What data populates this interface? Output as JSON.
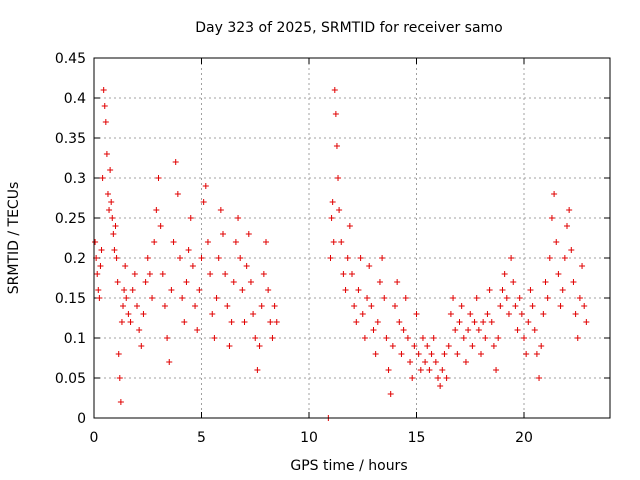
{
  "chart_data": {
    "type": "scatter",
    "title": "Day 323 of 2025, SRMTID for receiver samo",
    "xlabel": "GPS time / hours",
    "ylabel": "SRMTID / TECUs",
    "xlim": [
      0,
      24
    ],
    "ylim": [
      0,
      0.45
    ],
    "x_ticks": [
      0,
      5,
      10,
      15,
      20
    ],
    "x_tick_labels": [
      "0",
      "5",
      "10",
      "15",
      "20"
    ],
    "y_ticks": [
      0,
      0.05,
      0.1,
      0.15,
      0.2,
      0.25,
      0.3,
      0.35,
      0.4,
      0.45
    ],
    "y_tick_labels": [
      "0",
      "0.05",
      "0.1",
      "0.15",
      "0.2",
      "0.25",
      "0.3",
      "0.35",
      "0.4",
      "0.45"
    ],
    "grid": true,
    "marker": "plus",
    "color": "#e00000",
    "series": [
      {
        "name": "SRMTID",
        "points": [
          [
            0.05,
            0.22
          ],
          [
            0.1,
            0.2
          ],
          [
            0.15,
            0.18
          ],
          [
            0.2,
            0.16
          ],
          [
            0.25,
            0.15
          ],
          [
            0.3,
            0.19
          ],
          [
            0.35,
            0.21
          ],
          [
            0.4,
            0.3
          ],
          [
            0.45,
            0.41
          ],
          [
            0.5,
            0.39
          ],
          [
            0.55,
            0.37
          ],
          [
            0.6,
            0.33
          ],
          [
            0.65,
            0.28
          ],
          [
            0.7,
            0.26
          ],
          [
            0.75,
            0.31
          ],
          [
            0.8,
            0.27
          ],
          [
            0.85,
            0.25
          ],
          [
            0.9,
            0.23
          ],
          [
            0.95,
            0.21
          ],
          [
            1.0,
            0.24
          ],
          [
            1.05,
            0.2
          ],
          [
            1.1,
            0.17
          ],
          [
            1.15,
            0.08
          ],
          [
            1.2,
            0.05
          ],
          [
            1.25,
            0.02
          ],
          [
            1.3,
            0.12
          ],
          [
            1.35,
            0.14
          ],
          [
            1.4,
            0.16
          ],
          [
            1.45,
            0.19
          ],
          [
            1.5,
            0.15
          ],
          [
            1.6,
            0.13
          ],
          [
            1.7,
            0.12
          ],
          [
            1.8,
            0.16
          ],
          [
            1.9,
            0.18
          ],
          [
            2.0,
            0.14
          ],
          [
            2.1,
            0.11
          ],
          [
            2.2,
            0.09
          ],
          [
            2.3,
            0.13
          ],
          [
            2.4,
            0.17
          ],
          [
            2.5,
            0.2
          ],
          [
            2.6,
            0.18
          ],
          [
            2.7,
            0.15
          ],
          [
            2.8,
            0.22
          ],
          [
            2.9,
            0.26
          ],
          [
            3.0,
            0.3
          ],
          [
            3.1,
            0.24
          ],
          [
            3.2,
            0.18
          ],
          [
            3.3,
            0.14
          ],
          [
            3.4,
            0.1
          ],
          [
            3.5,
            0.07
          ],
          [
            3.6,
            0.16
          ],
          [
            3.7,
            0.22
          ],
          [
            3.8,
            0.32
          ],
          [
            3.9,
            0.28
          ],
          [
            4.0,
            0.2
          ],
          [
            4.1,
            0.15
          ],
          [
            4.2,
            0.12
          ],
          [
            4.3,
            0.17
          ],
          [
            4.4,
            0.21
          ],
          [
            4.5,
            0.25
          ],
          [
            4.6,
            0.19
          ],
          [
            4.7,
            0.14
          ],
          [
            4.8,
            0.11
          ],
          [
            4.9,
            0.16
          ],
          [
            5.0,
            0.2
          ],
          [
            5.1,
            0.27
          ],
          [
            5.2,
            0.29
          ],
          [
            5.3,
            0.22
          ],
          [
            5.4,
            0.18
          ],
          [
            5.5,
            0.13
          ],
          [
            5.6,
            0.1
          ],
          [
            5.7,
            0.15
          ],
          [
            5.8,
            0.2
          ],
          [
            5.9,
            0.26
          ],
          [
            6.0,
            0.23
          ],
          [
            6.1,
            0.18
          ],
          [
            6.2,
            0.14
          ],
          [
            6.3,
            0.09
          ],
          [
            6.4,
            0.12
          ],
          [
            6.5,
            0.17
          ],
          [
            6.6,
            0.22
          ],
          [
            6.7,
            0.25
          ],
          [
            6.8,
            0.2
          ],
          [
            6.9,
            0.16
          ],
          [
            7.0,
            0.12
          ],
          [
            7.1,
            0.19
          ],
          [
            7.2,
            0.23
          ],
          [
            7.3,
            0.17
          ],
          [
            7.4,
            0.13
          ],
          [
            7.5,
            0.1
          ],
          [
            7.6,
            0.06
          ],
          [
            7.7,
            0.09
          ],
          [
            7.8,
            0.14
          ],
          [
            7.9,
            0.18
          ],
          [
            8.0,
            0.22
          ],
          [
            8.1,
            0.16
          ],
          [
            8.2,
            0.12
          ],
          [
            8.3,
            0.1
          ],
          [
            8.4,
            0.14
          ],
          [
            8.5,
            0.12
          ],
          [
            10.9,
            0.0
          ],
          [
            11.0,
            0.2
          ],
          [
            11.05,
            0.25
          ],
          [
            11.1,
            0.27
          ],
          [
            11.15,
            0.22
          ],
          [
            11.2,
            0.41
          ],
          [
            11.25,
            0.38
          ],
          [
            11.3,
            0.34
          ],
          [
            11.35,
            0.3
          ],
          [
            11.4,
            0.26
          ],
          [
            11.5,
            0.22
          ],
          [
            11.6,
            0.18
          ],
          [
            11.7,
            0.16
          ],
          [
            11.8,
            0.2
          ],
          [
            11.9,
            0.24
          ],
          [
            12.0,
            0.18
          ],
          [
            12.1,
            0.14
          ],
          [
            12.2,
            0.12
          ],
          [
            12.3,
            0.16
          ],
          [
            12.4,
            0.2
          ],
          [
            12.5,
            0.13
          ],
          [
            12.6,
            0.1
          ],
          [
            12.7,
            0.15
          ],
          [
            12.8,
            0.19
          ],
          [
            12.9,
            0.14
          ],
          [
            13.0,
            0.11
          ],
          [
            13.1,
            0.08
          ],
          [
            13.2,
            0.12
          ],
          [
            13.3,
            0.17
          ],
          [
            13.4,
            0.2
          ],
          [
            13.5,
            0.15
          ],
          [
            13.6,
            0.1
          ],
          [
            13.7,
            0.06
          ],
          [
            13.8,
            0.03
          ],
          [
            13.9,
            0.09
          ],
          [
            14.0,
            0.14
          ],
          [
            14.1,
            0.17
          ],
          [
            14.2,
            0.12
          ],
          [
            14.3,
            0.08
          ],
          [
            14.4,
            0.11
          ],
          [
            14.5,
            0.15
          ],
          [
            14.6,
            0.1
          ],
          [
            14.7,
            0.07
          ],
          [
            14.8,
            0.05
          ],
          [
            14.9,
            0.09
          ],
          [
            15.0,
            0.13
          ],
          [
            15.1,
            0.08
          ],
          [
            15.2,
            0.06
          ],
          [
            15.3,
            0.1
          ],
          [
            15.4,
            0.07
          ],
          [
            15.5,
            0.09
          ],
          [
            15.6,
            0.06
          ],
          [
            15.7,
            0.08
          ],
          [
            15.8,
            0.1
          ],
          [
            15.9,
            0.07
          ],
          [
            16.0,
            0.05
          ],
          [
            16.1,
            0.04
          ],
          [
            16.2,
            0.06
          ],
          [
            16.3,
            0.08
          ],
          [
            16.4,
            0.05
          ],
          [
            16.5,
            0.09
          ],
          [
            16.6,
            0.13
          ],
          [
            16.7,
            0.15
          ],
          [
            16.8,
            0.11
          ],
          [
            16.9,
            0.08
          ],
          [
            17.0,
            0.12
          ],
          [
            17.1,
            0.14
          ],
          [
            17.2,
            0.1
          ],
          [
            17.3,
            0.07
          ],
          [
            17.4,
            0.11
          ],
          [
            17.5,
            0.13
          ],
          [
            17.6,
            0.09
          ],
          [
            17.7,
            0.12
          ],
          [
            17.8,
            0.15
          ],
          [
            17.9,
            0.11
          ],
          [
            18.0,
            0.08
          ],
          [
            18.1,
            0.12
          ],
          [
            18.2,
            0.1
          ],
          [
            18.3,
            0.13
          ],
          [
            18.4,
            0.16
          ],
          [
            18.5,
            0.12
          ],
          [
            18.6,
            0.09
          ],
          [
            18.7,
            0.06
          ],
          [
            18.8,
            0.1
          ],
          [
            18.9,
            0.14
          ],
          [
            19.0,
            0.16
          ],
          [
            19.1,
            0.18
          ],
          [
            19.2,
            0.15
          ],
          [
            19.3,
            0.13
          ],
          [
            19.4,
            0.2
          ],
          [
            19.5,
            0.17
          ],
          [
            19.6,
            0.14
          ],
          [
            19.7,
            0.11
          ],
          [
            19.8,
            0.15
          ],
          [
            19.9,
            0.13
          ],
          [
            20.0,
            0.1
          ],
          [
            20.1,
            0.08
          ],
          [
            20.2,
            0.12
          ],
          [
            20.3,
            0.16
          ],
          [
            20.4,
            0.14
          ],
          [
            20.5,
            0.11
          ],
          [
            20.6,
            0.08
          ],
          [
            20.7,
            0.05
          ],
          [
            20.8,
            0.09
          ],
          [
            20.9,
            0.13
          ],
          [
            21.0,
            0.17
          ],
          [
            21.1,
            0.15
          ],
          [
            21.2,
            0.2
          ],
          [
            21.3,
            0.25
          ],
          [
            21.4,
            0.28
          ],
          [
            21.5,
            0.22
          ],
          [
            21.6,
            0.18
          ],
          [
            21.7,
            0.14
          ],
          [
            21.8,
            0.16
          ],
          [
            21.9,
            0.2
          ],
          [
            22.0,
            0.24
          ],
          [
            22.1,
            0.26
          ],
          [
            22.2,
            0.21
          ],
          [
            22.3,
            0.17
          ],
          [
            22.4,
            0.13
          ],
          [
            22.5,
            0.1
          ],
          [
            22.6,
            0.15
          ],
          [
            22.7,
            0.19
          ],
          [
            22.8,
            0.14
          ],
          [
            22.9,
            0.12
          ]
        ]
      }
    ]
  }
}
